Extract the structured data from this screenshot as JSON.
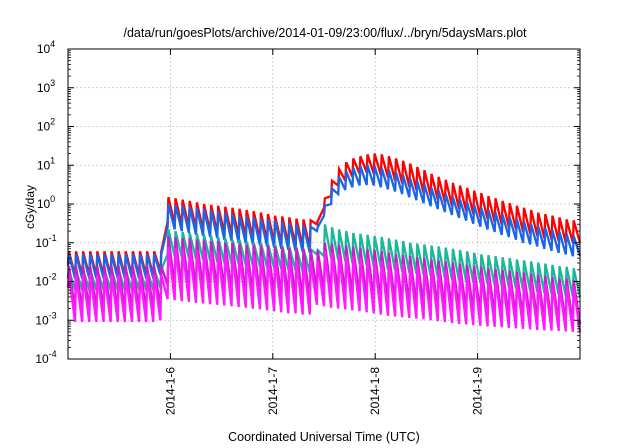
{
  "chart_data": {
    "type": "line",
    "title": "/data/run/goesPlots/archive/2014-01-09/23:00/flux/../bryn/5daysMars.plot",
    "xlabel": "Coordinated Universal Time (UTC)",
    "ylabel": "cGy/day",
    "y_scale": "log",
    "ylim": [
      0.0001,
      10000
    ],
    "xlim": [
      0,
      5
    ],
    "grid": true,
    "legend": "none",
    "y_ticks": [
      {
        "value": 0.0001,
        "base": "10",
        "exp": "-4"
      },
      {
        "value": 0.001,
        "base": "10",
        "exp": "-3"
      },
      {
        "value": 0.01,
        "base": "10",
        "exp": "-2"
      },
      {
        "value": 0.1,
        "base": "10",
        "exp": "-1"
      },
      {
        "value": 1,
        "base": "10",
        "exp": "0"
      },
      {
        "value": 10,
        "base": "10",
        "exp": "1"
      },
      {
        "value": 100,
        "base": "10",
        "exp": "2"
      },
      {
        "value": 1000,
        "base": "10",
        "exp": "3"
      },
      {
        "value": 10000,
        "base": "10",
        "exp": "4"
      }
    ],
    "x_ticks": [
      {
        "value": 1,
        "label": "2014-1-6"
      },
      {
        "value": 2,
        "label": "2014-1-7"
      },
      {
        "value": 3,
        "label": "2014-1-8"
      },
      {
        "value": 4,
        "label": "2014-1-9"
      }
    ],
    "series": [
      {
        "color": "#ff0000",
        "peaks": [
          0.06,
          0.06,
          0.06,
          0.06,
          0.06,
          0.06,
          0.06,
          0.06,
          0.06,
          0.06,
          0.06,
          0.06,
          0.06,
          0.06,
          1.5,
          1.4,
          1.3,
          1.2,
          1.1,
          1.0,
          0.95,
          0.9,
          0.85,
          0.8,
          0.75,
          0.7,
          0.65,
          0.6,
          0.55,
          0.5,
          0.48,
          0.45,
          0.42,
          0.4,
          0.38,
          0.36,
          1.4,
          4,
          8,
          12,
          15,
          17,
          19,
          20,
          19,
          17,
          15,
          13,
          11,
          9,
          7.5,
          6,
          5,
          4.2,
          3.5,
          3,
          2.6,
          2.2,
          1.9,
          1.6,
          1.4,
          1.2,
          1.05,
          0.9,
          0.8,
          0.7,
          0.6,
          0.55,
          0.5,
          0.45,
          0.4,
          0.38
        ],
        "troughs": [
          0.03,
          0.014,
          0.014,
          0.014,
          0.014,
          0.014,
          0.014,
          0.014,
          0.014,
          0.014,
          0.014,
          0.014,
          0.014,
          0.018,
          0.35,
          0.3,
          0.28,
          0.25,
          0.23,
          0.21,
          0.19,
          0.18,
          0.17,
          0.16,
          0.15,
          0.14,
          0.13,
          0.12,
          0.11,
          0.1,
          0.095,
          0.09,
          0.085,
          0.08,
          0.075,
          0.3,
          0.8,
          1.6,
          3,
          4,
          5,
          6,
          6.5,
          6,
          5.5,
          4.8,
          4,
          3.4,
          2.8,
          2.3,
          1.9,
          1.6,
          1.3,
          1.1,
          0.9,
          0.75,
          0.65,
          0.55,
          0.46,
          0.4,
          0.34,
          0.29,
          0.25,
          0.22,
          0.19,
          0.17,
          0.15,
          0.13,
          0.12,
          0.11,
          0.1,
          0.1
        ]
      },
      {
        "color": "#1a66e6",
        "peaks": [
          0.05,
          0.05,
          0.05,
          0.05,
          0.05,
          0.05,
          0.05,
          0.05,
          0.05,
          0.05,
          0.05,
          0.05,
          0.05,
          0.05,
          1.0,
          0.95,
          0.9,
          0.85,
          0.8,
          0.75,
          0.7,
          0.65,
          0.6,
          0.55,
          0.5,
          0.48,
          0.45,
          0.42,
          0.4,
          0.38,
          0.35,
          0.33,
          0.3,
          0.28,
          0.26,
          0.25,
          0.9,
          2.5,
          5,
          7,
          8.5,
          9.5,
          10,
          9.5,
          8.5,
          7.5,
          6.5,
          5.5,
          4.5,
          3.8,
          3.2,
          2.6,
          2.2,
          1.8,
          1.5,
          1.3,
          1.1,
          0.95,
          0.8,
          0.7,
          0.6,
          0.52,
          0.45,
          0.4,
          0.35,
          0.3,
          0.27,
          0.24,
          0.21,
          0.19,
          0.17,
          0.15
        ],
        "troughs": [
          0.025,
          0.012,
          0.012,
          0.012,
          0.012,
          0.012,
          0.012,
          0.012,
          0.012,
          0.012,
          0.012,
          0.012,
          0.012,
          0.015,
          0.25,
          0.22,
          0.2,
          0.18,
          0.16,
          0.15,
          0.14,
          0.13,
          0.12,
          0.11,
          0.1,
          0.095,
          0.09,
          0.085,
          0.08,
          0.075,
          0.07,
          0.065,
          0.06,
          0.058,
          0.055,
          0.2,
          0.5,
          1.0,
          1.8,
          2.3,
          2.7,
          3,
          3.1,
          3,
          2.7,
          2.4,
          2.1,
          1.8,
          1.5,
          1.25,
          1.05,
          0.88,
          0.74,
          0.62,
          0.52,
          0.44,
          0.37,
          0.31,
          0.26,
          0.22,
          0.19,
          0.16,
          0.14,
          0.12,
          0.1,
          0.09,
          0.08,
          0.07,
          0.062,
          0.055,
          0.05,
          0.045
        ]
      },
      {
        "color": "#1ab899",
        "peaks": [
          0.02,
          0.02,
          0.02,
          0.02,
          0.02,
          0.02,
          0.02,
          0.02,
          0.02,
          0.02,
          0.02,
          0.02,
          0.02,
          0.02,
          0.22,
          0.2,
          0.19,
          0.18,
          0.17,
          0.16,
          0.15,
          0.14,
          0.13,
          0.12,
          0.12,
          0.11,
          0.1,
          0.1,
          0.095,
          0.09,
          0.085,
          0.08,
          0.075,
          0.07,
          0.068,
          0.065,
          0.3,
          0.25,
          0.22,
          0.2,
          0.18,
          0.17,
          0.16,
          0.15,
          0.14,
          0.13,
          0.12,
          0.11,
          0.1,
          0.095,
          0.09,
          0.085,
          0.08,
          0.075,
          0.07,
          0.065,
          0.06,
          0.055,
          0.05,
          0.048,
          0.045,
          0.042,
          0.04,
          0.037,
          0.035,
          0.033,
          0.031,
          0.029,
          0.027,
          0.025,
          0.024,
          0.022
        ],
        "troughs": [
          0.012,
          0.006,
          0.006,
          0.006,
          0.006,
          0.006,
          0.006,
          0.006,
          0.006,
          0.006,
          0.006,
          0.006,
          0.006,
          0.007,
          0.05,
          0.045,
          0.042,
          0.04,
          0.038,
          0.036,
          0.034,
          0.032,
          0.03,
          0.029,
          0.028,
          0.026,
          0.025,
          0.024,
          0.023,
          0.022,
          0.021,
          0.02,
          0.019,
          0.018,
          0.017,
          0.05,
          0.045,
          0.04,
          0.036,
          0.033,
          0.03,
          0.028,
          0.026,
          0.024,
          0.022,
          0.02,
          0.019,
          0.018,
          0.017,
          0.016,
          0.015,
          0.014,
          0.013,
          0.012,
          0.011,
          0.0105,
          0.01,
          0.0095,
          0.009,
          0.0085,
          0.008,
          0.0075,
          0.007,
          0.0065,
          0.006,
          0.0057,
          0.0054,
          0.0051,
          0.0048,
          0.0045,
          0.0042,
          0.004
        ]
      },
      {
        "color": "#c81ec8",
        "peaks": [
          0.025,
          0.025,
          0.025,
          0.025,
          0.025,
          0.025,
          0.025,
          0.025,
          0.025,
          0.025,
          0.025,
          0.025,
          0.025,
          0.025,
          0.15,
          0.14,
          0.13,
          0.13,
          0.12,
          0.12,
          0.11,
          0.11,
          0.1,
          0.1,
          0.095,
          0.09,
          0.09,
          0.085,
          0.085,
          0.08,
          0.08,
          0.075,
          0.075,
          0.07,
          0.07,
          0.065,
          0.1,
          0.095,
          0.09,
          0.085,
          0.08,
          0.075,
          0.07,
          0.065,
          0.06,
          0.055,
          0.05,
          0.048,
          0.045,
          0.042,
          0.04,
          0.037,
          0.035,
          0.033,
          0.031,
          0.029,
          0.027,
          0.025,
          0.024,
          0.022,
          0.021,
          0.02,
          0.019,
          0.018,
          0.017,
          0.016,
          0.015,
          0.014,
          0.013,
          0.012,
          0.012,
          0.011
        ],
        "troughs": [
          0.012,
          0.0018,
          0.0018,
          0.0018,
          0.0018,
          0.0018,
          0.0018,
          0.0018,
          0.0018,
          0.0018,
          0.0018,
          0.0018,
          0.0018,
          0.002,
          0.008,
          0.0075,
          0.007,
          0.0068,
          0.0065,
          0.0062,
          0.006,
          0.0058,
          0.0055,
          0.0053,
          0.005,
          0.0048,
          0.0046,
          0.0044,
          0.0042,
          0.004,
          0.0038,
          0.0036,
          0.0035,
          0.0033,
          0.0032,
          0.006,
          0.0055,
          0.005,
          0.0047,
          0.0044,
          0.0041,
          0.0038,
          0.0036,
          0.0034,
          0.0032,
          0.003,
          0.0028,
          0.0026,
          0.0025,
          0.0024,
          0.0023,
          0.0022,
          0.0021,
          0.002,
          0.0019,
          0.0018,
          0.0017,
          0.0016,
          0.0015,
          0.0014,
          0.0013,
          0.00125,
          0.0012,
          0.00115,
          0.0011,
          0.00105,
          0.001,
          0.00095,
          0.0009,
          0.00088,
          0.00085,
          0.0008
        ]
      },
      {
        "color": "#ff1aff",
        "peaks": [
          0.015,
          0.015,
          0.015,
          0.015,
          0.015,
          0.015,
          0.015,
          0.015,
          0.015,
          0.015,
          0.015,
          0.015,
          0.015,
          0.015,
          0.08,
          0.075,
          0.07,
          0.07,
          0.065,
          0.065,
          0.06,
          0.06,
          0.055,
          0.055,
          0.05,
          0.05,
          0.048,
          0.046,
          0.044,
          0.042,
          0.04,
          0.038,
          0.036,
          0.035,
          0.034,
          0.033,
          0.06,
          0.055,
          0.05,
          0.048,
          0.045,
          0.042,
          0.04,
          0.037,
          0.035,
          0.033,
          0.031,
          0.029,
          0.027,
          0.025,
          0.024,
          0.022,
          0.021,
          0.02,
          0.019,
          0.018,
          0.017,
          0.016,
          0.015,
          0.014,
          0.013,
          0.012,
          0.0115,
          0.011,
          0.0105,
          0.01,
          0.0095,
          0.009,
          0.0085,
          0.008,
          0.0078,
          0.0075
        ],
        "troughs": [
          0.007,
          0.0009,
          0.0009,
          0.0009,
          0.0009,
          0.0009,
          0.0009,
          0.0009,
          0.0009,
          0.0009,
          0.0009,
          0.0009,
          0.0009,
          0.001,
          0.0035,
          0.0033,
          0.0031,
          0.003,
          0.0028,
          0.0027,
          0.0026,
          0.0025,
          0.0024,
          0.0023,
          0.0022,
          0.0021,
          0.002,
          0.0019,
          0.0018,
          0.0017,
          0.0016,
          0.0015,
          0.0015,
          0.0014,
          0.0014,
          0.0025,
          0.0023,
          0.0021,
          0.002,
          0.0019,
          0.0018,
          0.0017,
          0.0016,
          0.0015,
          0.0014,
          0.0013,
          0.00125,
          0.0012,
          0.00115,
          0.0011,
          0.00105,
          0.001,
          0.00095,
          0.0009,
          0.00085,
          0.0008,
          0.00078,
          0.00075,
          0.00072,
          0.0007,
          0.00068,
          0.00066,
          0.00064,
          0.00062,
          0.0006,
          0.00058,
          0.00056,
          0.00055,
          0.00054,
          0.00053,
          0.00052,
          0.0005
        ]
      }
    ]
  }
}
